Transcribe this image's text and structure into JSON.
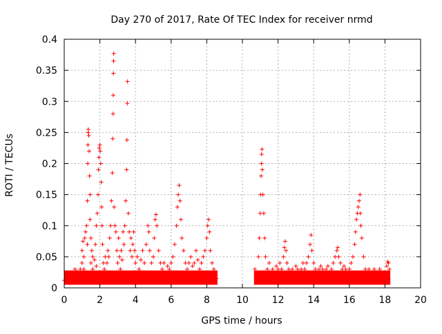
{
  "chart_data": {
    "type": "scatter",
    "title": "Day 270 of 2017, Rate Of TEC Index for receiver nrmd",
    "xlabel": "GPS time / hours",
    "ylabel": "ROTI / TECUs",
    "xlim": [
      0,
      20
    ],
    "ylim": [
      0,
      0.4
    ],
    "xticks": [
      "0",
      "2",
      "4",
      "6",
      "8",
      "10",
      "12",
      "14",
      "16",
      "18",
      "20"
    ],
    "yticks": [
      "0",
      "0.05",
      "0.1",
      "0.15",
      "0.2",
      "0.25",
      "0.3",
      "0.35",
      "0.4"
    ],
    "grid": true,
    "marker": "plus",
    "color": "#ff0000",
    "series": [
      {
        "points": [
          [
            0.0,
            0.012
          ],
          [
            0.1,
            0.018
          ],
          [
            0.2,
            0.01
          ],
          [
            0.3,
            0.02
          ],
          [
            0.4,
            0.015
          ],
          [
            0.5,
            0.022
          ],
          [
            0.6,
            0.012
          ],
          [
            0.7,
            0.026
          ],
          [
            0.8,
            0.018
          ],
          [
            0.9,
            0.03
          ],
          [
            1.0,
            0.04
          ],
          [
            1.0,
            0.06
          ],
          [
            1.05,
            0.075
          ],
          [
            1.1,
            0.05
          ],
          [
            1.1,
            0.03
          ],
          [
            1.15,
            0.08
          ],
          [
            1.2,
            0.09
          ],
          [
            1.2,
            0.02
          ],
          [
            1.25,
            0.1
          ],
          [
            1.3,
            0.07
          ],
          [
            1.3,
            0.14
          ],
          [
            1.32,
            0.2
          ],
          [
            1.33,
            0.23
          ],
          [
            1.35,
            0.25
          ],
          [
            1.35,
            0.255
          ],
          [
            1.38,
            0.245
          ],
          [
            1.4,
            0.22
          ],
          [
            1.42,
            0.18
          ],
          [
            1.45,
            0.15
          ],
          [
            1.45,
            0.11
          ],
          [
            1.5,
            0.08
          ],
          [
            1.5,
            0.04
          ],
          [
            1.55,
            0.06
          ],
          [
            1.6,
            0.03
          ],
          [
            1.6,
            0.05
          ],
          [
            1.65,
            0.02
          ],
          [
            1.7,
            0.045
          ],
          [
            1.75,
            0.07
          ],
          [
            1.8,
            0.035
          ],
          [
            1.8,
            0.1
          ],
          [
            1.85,
            0.12
          ],
          [
            1.9,
            0.15
          ],
          [
            1.92,
            0.19
          ],
          [
            1.95,
            0.21
          ],
          [
            1.97,
            0.225
          ],
          [
            2.0,
            0.23
          ],
          [
            2.02,
            0.22
          ],
          [
            2.05,
            0.2
          ],
          [
            2.08,
            0.17
          ],
          [
            2.1,
            0.13
          ],
          [
            2.12,
            0.1
          ],
          [
            2.15,
            0.07
          ],
          [
            2.2,
            0.04
          ],
          [
            2.25,
            0.03
          ],
          [
            2.3,
            0.05
          ],
          [
            2.35,
            0.025
          ],
          [
            2.4,
            0.04
          ],
          [
            2.45,
            0.06
          ],
          [
            2.5,
            0.05
          ],
          [
            2.55,
            0.08
          ],
          [
            2.6,
            0.1
          ],
          [
            2.65,
            0.14
          ],
          [
            2.7,
            0.185
          ],
          [
            2.72,
            0.24
          ],
          [
            2.74,
            0.28
          ],
          [
            2.75,
            0.31
          ],
          [
            2.76,
            0.345
          ],
          [
            2.77,
            0.365
          ],
          [
            2.78,
            0.377
          ],
          [
            2.8,
            0.13
          ],
          [
            2.85,
            0.1
          ],
          [
            2.9,
            0.09
          ],
          [
            2.95,
            0.06
          ],
          [
            3.0,
            0.04
          ],
          [
            3.05,
            0.08
          ],
          [
            3.1,
            0.05
          ],
          [
            3.15,
            0.03
          ],
          [
            3.2,
            0.06
          ],
          [
            3.25,
            0.045
          ],
          [
            3.3,
            0.09
          ],
          [
            3.35,
            0.07
          ],
          [
            3.4,
            0.1
          ],
          [
            3.45,
            0.14
          ],
          [
            3.5,
            0.19
          ],
          [
            3.52,
            0.238
          ],
          [
            3.54,
            0.297
          ],
          [
            3.55,
            0.332
          ],
          [
            3.6,
            0.12
          ],
          [
            3.65,
            0.09
          ],
          [
            3.7,
            0.06
          ],
          [
            3.75,
            0.08
          ],
          [
            3.8,
            0.05
          ],
          [
            3.85,
            0.07
          ],
          [
            3.9,
            0.09
          ],
          [
            3.95,
            0.06
          ],
          [
            4.0,
            0.04
          ],
          [
            4.1,
            0.05
          ],
          [
            4.2,
            0.03
          ],
          [
            4.3,
            0.045
          ],
          [
            4.4,
            0.06
          ],
          [
            4.5,
            0.04
          ],
          [
            4.6,
            0.07
          ],
          [
            4.7,
            0.1
          ],
          [
            4.75,
            0.09
          ],
          [
            4.8,
            0.06
          ],
          [
            4.9,
            0.04
          ],
          [
            5.0,
            0.05
          ],
          [
            5.05,
            0.08
          ],
          [
            5.1,
            0.11
          ],
          [
            5.15,
            0.118
          ],
          [
            5.2,
            0.1
          ],
          [
            5.3,
            0.06
          ],
          [
            5.4,
            0.04
          ],
          [
            5.5,
            0.03
          ],
          [
            5.6,
            0.04
          ],
          [
            5.7,
            0.025
          ],
          [
            5.8,
            0.035
          ],
          [
            5.9,
            0.03
          ],
          [
            6.0,
            0.04
          ],
          [
            6.1,
            0.05
          ],
          [
            6.2,
            0.07
          ],
          [
            6.3,
            0.1
          ],
          [
            6.35,
            0.13
          ],
          [
            6.4,
            0.15
          ],
          [
            6.45,
            0.165
          ],
          [
            6.5,
            0.14
          ],
          [
            6.55,
            0.11
          ],
          [
            6.6,
            0.08
          ],
          [
            6.7,
            0.06
          ],
          [
            6.8,
            0.04
          ],
          [
            6.9,
            0.03
          ],
          [
            7.0,
            0.04
          ],
          [
            7.1,
            0.05
          ],
          [
            7.2,
            0.035
          ],
          [
            7.3,
            0.04
          ],
          [
            7.4,
            0.06
          ],
          [
            7.5,
            0.045
          ],
          [
            7.6,
            0.03
          ],
          [
            7.7,
            0.04
          ],
          [
            7.8,
            0.05
          ],
          [
            7.9,
            0.06
          ],
          [
            8.0,
            0.08
          ],
          [
            8.05,
            0.1
          ],
          [
            8.1,
            0.11
          ],
          [
            8.15,
            0.09
          ],
          [
            8.2,
            0.06
          ],
          [
            8.3,
            0.04
          ],
          [
            8.4,
            0.03
          ],
          [
            8.5,
            0.02
          ],
          [
            8.55,
            0.015
          ],
          [
            0.3,
            0.008
          ],
          [
            0.6,
            0.03
          ],
          [
            1.7,
            0.01
          ],
          [
            2.3,
            0.012
          ],
          [
            3.0,
            0.015
          ],
          [
            3.7,
            0.01
          ],
          [
            4.4,
            0.014
          ],
          [
            5.0,
            0.012
          ],
          [
            5.8,
            0.016
          ],
          [
            6.6,
            0.014
          ],
          [
            7.4,
            0.012
          ],
          [
            8.0,
            0.015
          ],
          [
            8.4,
            0.01
          ],
          [
            10.7,
            0.03
          ],
          [
            10.8,
            0.02
          ],
          [
            10.9,
            0.05
          ],
          [
            10.95,
            0.08
          ],
          [
            11.0,
            0.12
          ],
          [
            11.02,
            0.15
          ],
          [
            11.05,
            0.18
          ],
          [
            11.07,
            0.2
          ],
          [
            11.08,
            0.215
          ],
          [
            11.1,
            0.223
          ],
          [
            11.12,
            0.19
          ],
          [
            11.15,
            0.15
          ],
          [
            11.2,
            0.12
          ],
          [
            11.25,
            0.08
          ],
          [
            11.3,
            0.05
          ],
          [
            11.4,
            0.03
          ],
          [
            11.5,
            0.04
          ],
          [
            11.6,
            0.025
          ],
          [
            11.7,
            0.03
          ],
          [
            11.8,
            0.02
          ],
          [
            11.9,
            0.035
          ],
          [
            12.0,
            0.03
          ],
          [
            12.1,
            0.04
          ],
          [
            12.2,
            0.03
          ],
          [
            12.3,
            0.05
          ],
          [
            12.35,
            0.065
          ],
          [
            12.4,
            0.075
          ],
          [
            12.45,
            0.06
          ],
          [
            12.5,
            0.04
          ],
          [
            12.6,
            0.03
          ],
          [
            12.7,
            0.025
          ],
          [
            12.8,
            0.03
          ],
          [
            12.9,
            0.02
          ],
          [
            13.0,
            0.035
          ],
          [
            13.1,
            0.03
          ],
          [
            13.2,
            0.025
          ],
          [
            13.3,
            0.03
          ],
          [
            13.4,
            0.04
          ],
          [
            13.5,
            0.03
          ],
          [
            13.6,
            0.04
          ],
          [
            13.7,
            0.05
          ],
          [
            13.8,
            0.07
          ],
          [
            13.85,
            0.085
          ],
          [
            13.9,
            0.06
          ],
          [
            14.0,
            0.04
          ],
          [
            14.1,
            0.03
          ],
          [
            14.2,
            0.025
          ],
          [
            14.3,
            0.03
          ],
          [
            14.4,
            0.035
          ],
          [
            14.5,
            0.03
          ],
          [
            14.6,
            0.025
          ],
          [
            14.7,
            0.03
          ],
          [
            14.8,
            0.035
          ],
          [
            14.9,
            0.025
          ],
          [
            15.0,
            0.03
          ],
          [
            15.1,
            0.04
          ],
          [
            15.2,
            0.05
          ],
          [
            15.3,
            0.06
          ],
          [
            15.35,
            0.065
          ],
          [
            15.4,
            0.05
          ],
          [
            15.5,
            0.04
          ],
          [
            15.6,
            0.03
          ],
          [
            15.7,
            0.035
          ],
          [
            15.8,
            0.03
          ],
          [
            15.9,
            0.025
          ],
          [
            16.0,
            0.03
          ],
          [
            16.1,
            0.04
          ],
          [
            16.2,
            0.05
          ],
          [
            16.3,
            0.07
          ],
          [
            16.35,
            0.09
          ],
          [
            16.4,
            0.11
          ],
          [
            16.45,
            0.12
          ],
          [
            16.5,
            0.13
          ],
          [
            16.55,
            0.14
          ],
          [
            16.6,
            0.15
          ],
          [
            16.62,
            0.12
          ],
          [
            16.65,
            0.1
          ],
          [
            16.7,
            0.08
          ],
          [
            16.8,
            0.05
          ],
          [
            16.9,
            0.03
          ],
          [
            17.0,
            0.025
          ],
          [
            17.1,
            0.03
          ],
          [
            17.2,
            0.02
          ],
          [
            17.3,
            0.025
          ],
          [
            17.4,
            0.03
          ],
          [
            17.5,
            0.025
          ],
          [
            17.6,
            0.02
          ],
          [
            17.7,
            0.03
          ],
          [
            17.8,
            0.025
          ],
          [
            17.9,
            0.02
          ],
          [
            18.0,
            0.025
          ],
          [
            18.1,
            0.035
          ],
          [
            18.15,
            0.042
          ],
          [
            18.2,
            0.04
          ],
          [
            18.25,
            0.03
          ],
          [
            10.8,
            0.01
          ],
          [
            11.4,
            0.012
          ],
          [
            12.0,
            0.014
          ],
          [
            12.6,
            0.01
          ],
          [
            13.2,
            0.012
          ],
          [
            13.8,
            0.015
          ],
          [
            14.4,
            0.01
          ],
          [
            15.0,
            0.012
          ],
          [
            15.6,
            0.011
          ],
          [
            16.2,
            0.013
          ],
          [
            16.8,
            0.01
          ],
          [
            17.4,
            0.012
          ],
          [
            18.0,
            0.01
          ],
          [
            18.2,
            0.014
          ]
        ]
      }
    ],
    "bands": [
      {
        "x": [
          0.0,
          8.6
        ],
        "y": [
          0.005,
          0.028
        ]
      },
      {
        "x": [
          10.65,
          18.3
        ],
        "y": [
          0.005,
          0.028
        ]
      }
    ]
  }
}
